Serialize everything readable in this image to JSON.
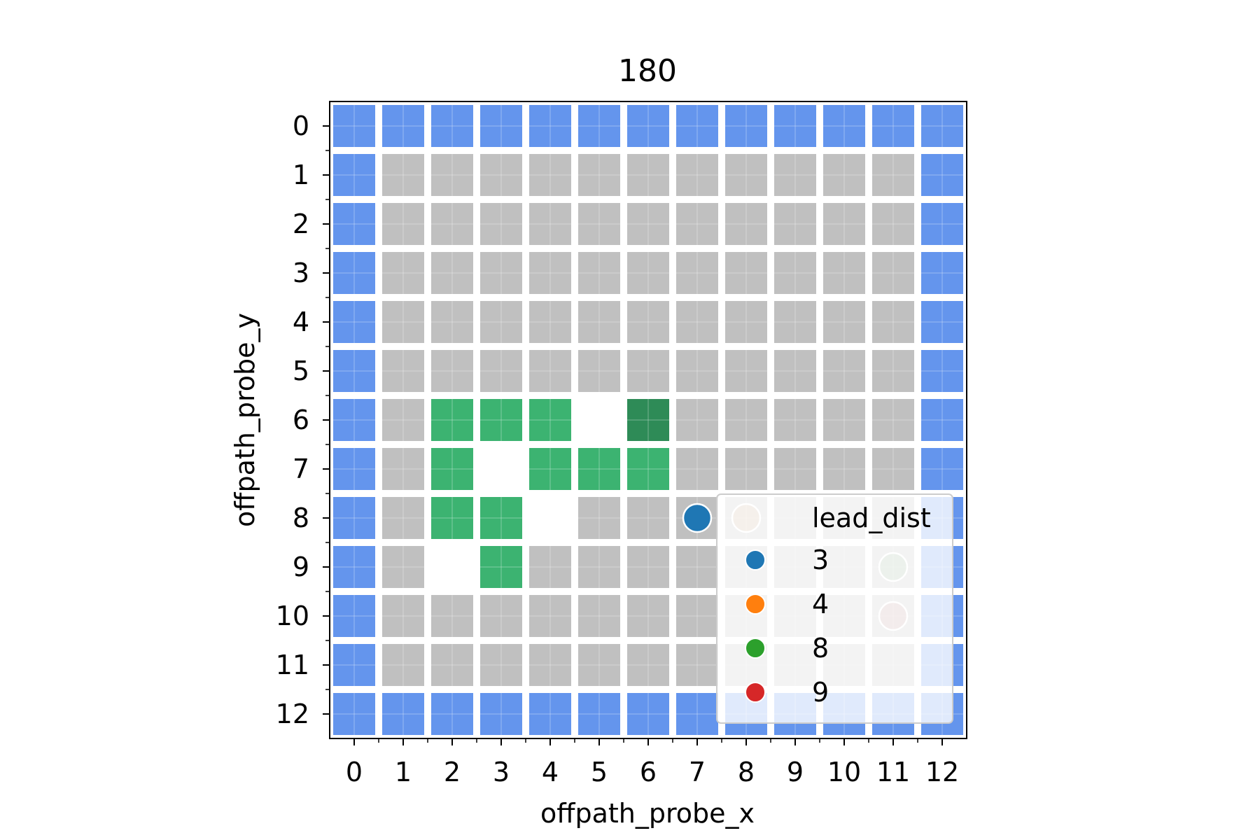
{
  "chart_data": {
    "type": "heatmap",
    "title": "180",
    "xlabel": "offpath_probe_x",
    "ylabel": "offpath_probe_y",
    "x_ticks": [
      "0",
      "1",
      "2",
      "3",
      "4",
      "5",
      "6",
      "7",
      "8",
      "9",
      "10",
      "11",
      "12"
    ],
    "y_ticks": [
      "0",
      "1",
      "2",
      "3",
      "4",
      "5",
      "6",
      "7",
      "8",
      "9",
      "10",
      "11",
      "12"
    ],
    "xlim": [
      -0.5,
      12.5
    ],
    "ylim": [
      12.5,
      -0.5
    ],
    "grid": true,
    "cell_colors": {
      "W": "#6495ED",
      "G": "#C0C0C0",
      "P": "#3CB371",
      "D": "#2E8B57",
      "E": "#FFFFFF"
    },
    "grid_rows": [
      "WWWWWWWWWWWWW",
      "WGGGGGGGGGGGW",
      "WGGGGGGGGGGGW",
      "WGGGGGGGGGGGW",
      "WGGGGGGGGGGGW",
      "WGGGGGGGGGGGW",
      "WGPPPEDGGGGGW",
      "WGPEPPPGGGGGW",
      "WGPPEGGGGGGGW",
      "WGEPGGGGGGGGW",
      "WGGGGGGGGGGGW",
      "WGGGGGGGGGGGW",
      "WWWWWWWWWWWWW"
    ],
    "points": [
      {
        "x": 7,
        "y": 8,
        "color": "#1f77b4",
        "alpha": 1.0
      },
      {
        "x": 8,
        "y": 8,
        "color": "#ff7f0e",
        "alpha": 0.2
      },
      {
        "x": 11,
        "y": 9,
        "color": "#2ca02c",
        "alpha": 0.2
      },
      {
        "x": 11,
        "y": 10,
        "color": "#d62728",
        "alpha": 0.2
      }
    ],
    "legend": {
      "title": "lead_dist",
      "placement": "lower right",
      "entries": [
        {
          "label": "3",
          "color": "#1f77b4"
        },
        {
          "label": "4",
          "color": "#ff7f0e"
        },
        {
          "label": "8",
          "color": "#2ca02c"
        },
        {
          "label": "9",
          "color": "#d62728"
        }
      ]
    }
  }
}
